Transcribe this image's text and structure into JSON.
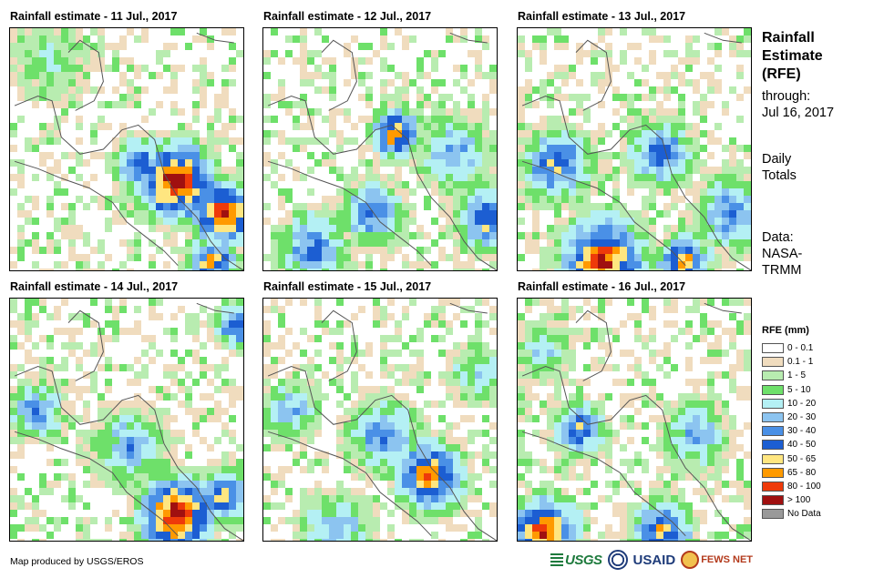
{
  "panels": [
    {
      "title": "Rainfall estimate - 11 Jul., 2017"
    },
    {
      "title": "Rainfall estimate - 12 Jul., 2017"
    },
    {
      "title": "Rainfall estimate - 13 Jul., 2017"
    },
    {
      "title": "Rainfall estimate - 14 Jul., 2017"
    },
    {
      "title": "Rainfall estimate - 15 Jul., 2017"
    },
    {
      "title": "Rainfall estimate - 16 Jul., 2017"
    }
  ],
  "side": {
    "title_line1": "Rainfall",
    "title_line2": "Estimate",
    "title_line3": "(RFE)",
    "through_label": "through:",
    "through_date": "Jul 16, 2017",
    "daily_line1": "Daily",
    "daily_line2": "Totals",
    "data_line1": "Data:",
    "data_line2": "NASA-",
    "data_line3": "TRMM"
  },
  "legend": {
    "title": "RFE (mm)",
    "items": [
      {
        "label": "0 - 0.1",
        "color": "#ffffff"
      },
      {
        "label": "0.1 - 1",
        "color": "#f0dcbe"
      },
      {
        "label": "1 - 5",
        "color": "#b8ecb0"
      },
      {
        "label": "5 - 10",
        "color": "#6ee06a"
      },
      {
        "label": "10 - 20",
        "color": "#b4f0f4"
      },
      {
        "label": "20 - 30",
        "color": "#8cc4f0"
      },
      {
        "label": "30 - 40",
        "color": "#4a90e6"
      },
      {
        "label": "40 - 50",
        "color": "#1c5ed2"
      },
      {
        "label": "50 - 65",
        "color": "#ffe680"
      },
      {
        "label": "65 - 80",
        "color": "#ff9a00"
      },
      {
        "label": "80 - 100",
        "color": "#ee3a0a"
      },
      {
        "label": "> 100",
        "color": "#a01010"
      },
      {
        "label": "No Data",
        "color": "#999999"
      }
    ]
  },
  "footer": {
    "credit": "Map produced by USGS/EROS",
    "logo_usgs": "USGS",
    "logo_usaid": "USAID",
    "logo_fews": "FEWS NET"
  }
}
